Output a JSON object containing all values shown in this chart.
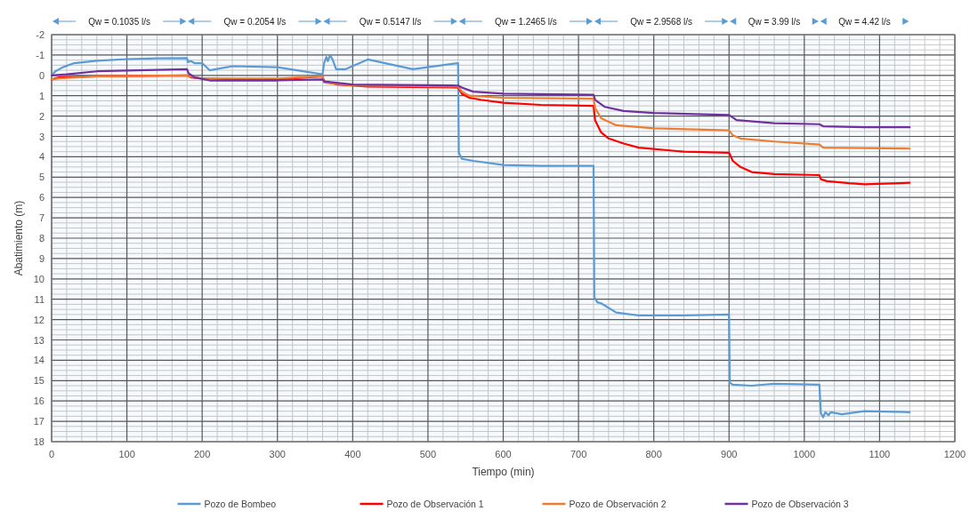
{
  "chart_data": {
    "type": "line",
    "xlabel": "Tiempo  (min)",
    "ylabel": "Abatimiento  (m)",
    "xlim": [
      0,
      1200
    ],
    "xticks": [
      0,
      100,
      200,
      300,
      400,
      500,
      600,
      700,
      800,
      900,
      1000,
      1100,
      1200
    ],
    "ylim": [
      18,
      -2
    ],
    "yticks": [
      -2,
      -1,
      0,
      1,
      2,
      3,
      4,
      5,
      6,
      7,
      8,
      9,
      10,
      11,
      12,
      13,
      14,
      15,
      16,
      17,
      18
    ],
    "grid": true,
    "legend": "bottom",
    "line_style": "solid",
    "bands": [
      {
        "axis": "x",
        "from": 0,
        "to": 180,
        "label": "Qw = 0.1035 l/s",
        "color": "#5b9bd5"
      },
      {
        "axis": "x",
        "from": 180,
        "to": 360,
        "label": "Qw = 0.2054 l/s",
        "color": "#5b9bd5"
      },
      {
        "axis": "x",
        "from": 360,
        "to": 540,
        "label": "Qw = 0.5147 l/s",
        "color": "#5b9bd5"
      },
      {
        "axis": "x",
        "from": 540,
        "to": 720,
        "label": "Qw = 1.2465 l/s",
        "color": "#5b9bd5"
      },
      {
        "axis": "x",
        "from": 720,
        "to": 900,
        "label": "Qw = 2.9568 l/s",
        "color": "#5b9bd5"
      },
      {
        "axis": "x",
        "from": 900,
        "to": 1020,
        "label": "Qw = 3.99 l/s",
        "color": "#5b9bd5"
      },
      {
        "axis": "x",
        "from": 1020,
        "to": 1140,
        "label": "Qw = 4.42 l/s",
        "color": "#5b9bd5"
      }
    ],
    "series": [
      {
        "name": "Pozo de Bombeo",
        "color": "#5b9bd5",
        "x": [
          0,
          5,
          15,
          30,
          60,
          100,
          140,
          180,
          181,
          185,
          190,
          200,
          210,
          240,
          300,
          360,
          362,
          365,
          367,
          370,
          373,
          378,
          390,
          420,
          480,
          540,
          541,
          545,
          560,
          600,
          650,
          720,
          721,
          725,
          730,
          750,
          780,
          840,
          900,
          901,
          905,
          930,
          960,
          1020,
          1022,
          1025,
          1028,
          1032,
          1035,
          1050,
          1080,
          1140
        ],
        "values": [
          0,
          -0.2,
          -0.4,
          -0.6,
          -0.72,
          -0.8,
          -0.84,
          -0.85,
          -0.65,
          -0.7,
          -0.6,
          -0.6,
          -0.25,
          -0.45,
          -0.4,
          -0.05,
          -0.6,
          -0.9,
          -0.7,
          -1.0,
          -0.8,
          -0.3,
          -0.3,
          -0.78,
          -0.3,
          -0.6,
          3.8,
          4.1,
          4.2,
          4.4,
          4.45,
          4.45,
          10.9,
          11.15,
          11.2,
          11.65,
          11.8,
          11.8,
          11.75,
          15.1,
          15.2,
          15.25,
          15.15,
          15.2,
          16.6,
          16.8,
          16.55,
          16.7,
          16.55,
          16.65,
          16.5,
          16.55
        ]
      },
      {
        "name": "Pozo de Observación 1",
        "color": "#ff0000",
        "x": [
          0,
          10,
          60,
          180,
          185,
          200,
          250,
          300,
          360,
          362,
          380,
          420,
          540,
          545,
          555,
          570,
          600,
          650,
          720,
          722,
          730,
          740,
          760,
          780,
          840,
          900,
          905,
          915,
          930,
          960,
          1020,
          1022,
          1030,
          1060,
          1080,
          1140
        ],
        "values": [
          0.2,
          0.1,
          0.05,
          0,
          0.1,
          0.15,
          0.2,
          0.2,
          0.05,
          0.3,
          0.45,
          0.55,
          0.6,
          0.9,
          1.1,
          1.2,
          1.35,
          1.45,
          1.5,
          2.2,
          2.8,
          3.1,
          3.35,
          3.55,
          3.75,
          3.8,
          4.2,
          4.5,
          4.75,
          4.85,
          4.9,
          5.1,
          5.2,
          5.3,
          5.35,
          5.28
        ]
      },
      {
        "name": "Pozo de Observación 2",
        "color": "#ed7d31",
        "x": [
          0,
          10,
          60,
          180,
          182,
          200,
          300,
          360,
          362,
          400,
          540,
          545,
          555,
          600,
          720,
          722,
          730,
          750,
          800,
          900,
          905,
          915,
          960,
          1020,
          1025,
          1140
        ],
        "values": [
          0.2,
          0.15,
          0.05,
          0,
          0.05,
          0.15,
          0.15,
          0.05,
          0.35,
          0.5,
          0.55,
          0.8,
          1.0,
          1.1,
          1.15,
          1.6,
          2.1,
          2.45,
          2.6,
          2.7,
          2.95,
          3.1,
          3.25,
          3.4,
          3.55,
          3.6
        ]
      },
      {
        "name": "Pozo de Observación 3",
        "color": "#7030a0",
        "x": [
          0,
          20,
          60,
          180,
          182,
          190,
          210,
          300,
          360,
          362,
          400,
          540,
          545,
          560,
          600,
          720,
          722,
          735,
          760,
          800,
          900,
          910,
          960,
          1020,
          1025,
          1080,
          1140
        ],
        "values": [
          0,
          -0.05,
          -0.2,
          -0.3,
          -0.1,
          0.1,
          0.25,
          0.25,
          0.2,
          0.3,
          0.45,
          0.5,
          0.6,
          0.8,
          0.9,
          0.95,
          1.2,
          1.55,
          1.75,
          1.85,
          1.95,
          2.2,
          2.35,
          2.4,
          2.5,
          2.55,
          2.55
        ]
      }
    ]
  }
}
